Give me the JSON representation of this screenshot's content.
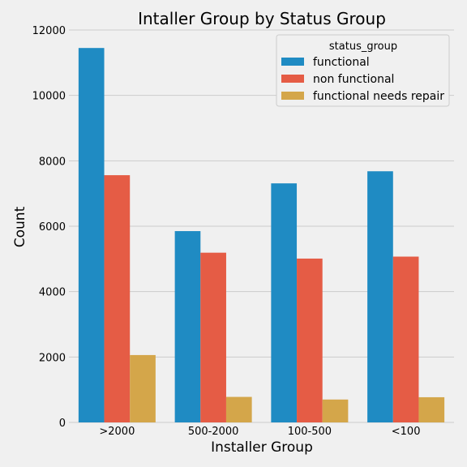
{
  "chart_data": {
    "type": "bar",
    "title": "Intaller Group by Status Group",
    "xlabel": "Installer Group",
    "ylabel": "Count",
    "categories": [
      ">2000",
      "500-2000",
      "100-500",
      "<100"
    ],
    "series": [
      {
        "name": "functional",
        "color": "#1f8bc3",
        "values": [
          11450,
          5850,
          7310,
          7680
        ]
      },
      {
        "name": "non functional",
        "color": "#e55c45",
        "values": [
          7560,
          5190,
          5010,
          5070
        ]
      },
      {
        "name": "functional needs repair",
        "color": "#d4a64a",
        "values": [
          2060,
          780,
          700,
          770
        ]
      }
    ],
    "ylim": [
      0,
      12000
    ],
    "yticks": [
      0,
      2000,
      4000,
      6000,
      8000,
      10000,
      12000
    ],
    "grid": true,
    "legend": {
      "title": "status_group",
      "placement": "top-right"
    },
    "background": "#f0f0f0"
  }
}
